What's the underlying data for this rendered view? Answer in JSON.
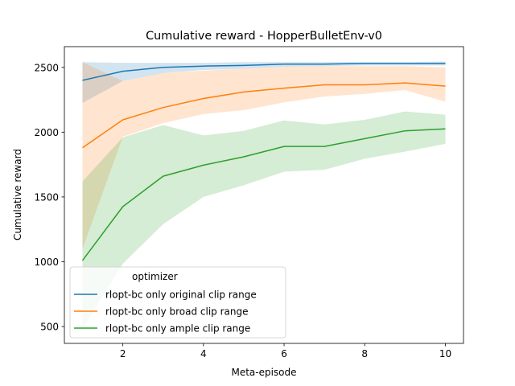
{
  "chart_data": {
    "type": "line",
    "title": "Cumulative reward - HopperBulletEnv-v0",
    "xlabel": "Meta-episode",
    "ylabel": "Cumulative reward",
    "xlim": [
      0.55,
      10.45
    ],
    "ylim": [
      370,
      2660
    ],
    "x_ticks": [
      2,
      4,
      6,
      8,
      10
    ],
    "y_ticks": [
      500,
      1000,
      1500,
      2000,
      2500
    ],
    "grid": false,
    "legend": {
      "title": "optimizer",
      "placement": "lower-left"
    },
    "x": [
      1,
      2,
      3,
      4,
      5,
      6,
      7,
      8,
      9,
      10
    ],
    "series": [
      {
        "name": "rlopt-bc only original clip range",
        "color": "#1f77b4",
        "values": [
          2400,
          2470,
          2500,
          2510,
          2515,
          2525,
          2525,
          2530,
          2530,
          2530
        ],
        "lower": [
          2225,
          2395,
          2455,
          2480,
          2490,
          2505,
          2510,
          2515,
          2515,
          2515
        ],
        "upper": [
          2540,
          2535,
          2535,
          2535,
          2540,
          2540,
          2540,
          2540,
          2540,
          2545
        ]
      },
      {
        "name": "rlopt-bc only broad clip range",
        "color": "#ff7f0e",
        "values": [
          1880,
          2095,
          2190,
          2260,
          2310,
          2340,
          2365,
          2365,
          2380,
          2355
        ],
        "lower": [
          1100,
          1965,
          2070,
          2140,
          2170,
          2230,
          2275,
          2295,
          2325,
          2235
        ],
        "upper": [
          2540,
          2395,
          2455,
          2475,
          2490,
          2505,
          2510,
          2510,
          2510,
          2500
        ]
      },
      {
        "name": "rlopt-bc only ample clip range",
        "color": "#2ca02c",
        "values": [
          1010,
          1425,
          1660,
          1745,
          1810,
          1890,
          1890,
          1950,
          2010,
          2025
        ],
        "lower": [
          480,
          985,
          1290,
          1500,
          1590,
          1695,
          1710,
          1795,
          1850,
          1910
        ],
        "upper": [
          1620,
          1960,
          2055,
          1975,
          2010,
          2090,
          2060,
          2095,
          2160,
          2135
        ]
      }
    ]
  }
}
